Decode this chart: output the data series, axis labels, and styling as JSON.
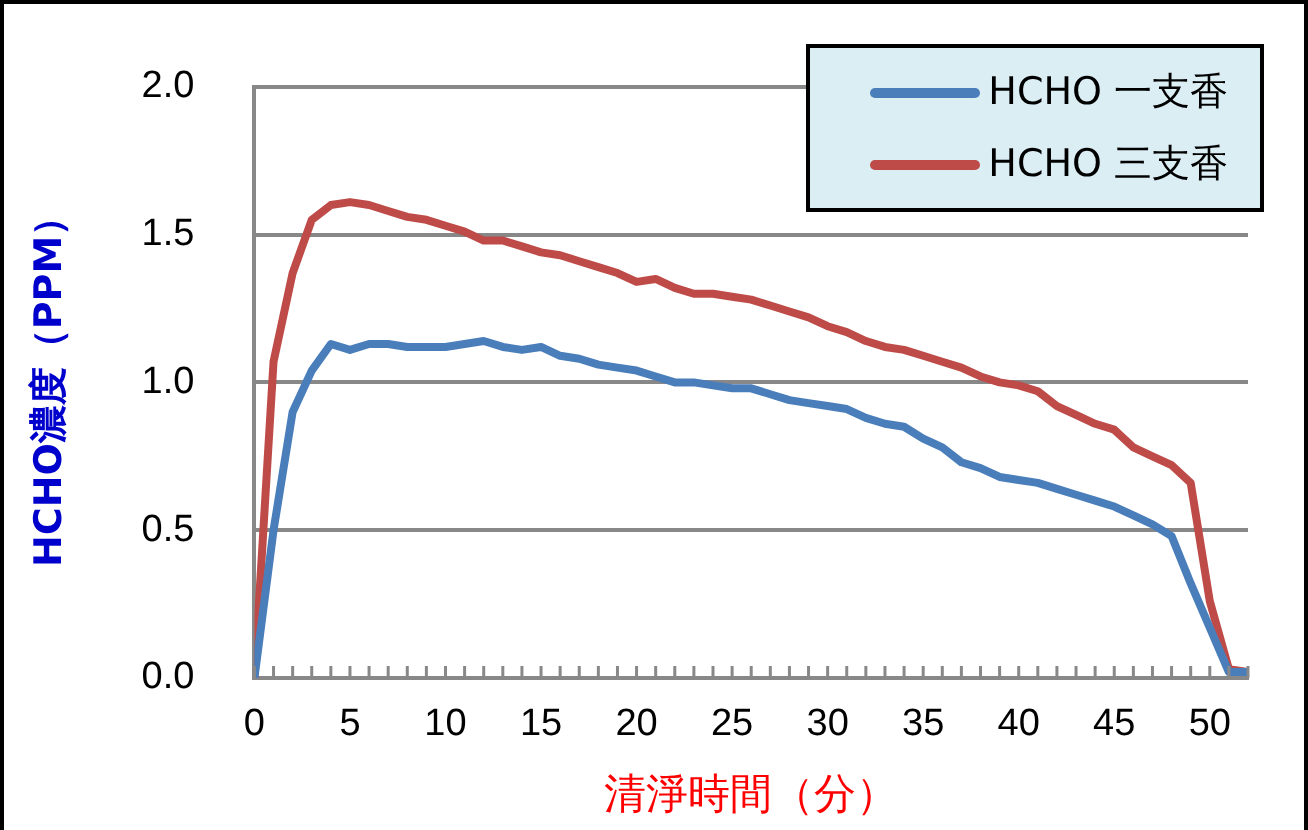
{
  "chart_data": {
    "type": "line",
    "xlabel": "清淨時間（分）",
    "ylabel": "HCHO濃度（PPM）",
    "x": [
      0,
      1,
      2,
      3,
      4,
      5,
      6,
      7,
      8,
      9,
      10,
      11,
      12,
      13,
      14,
      15,
      16,
      17,
      18,
      19,
      20,
      21,
      22,
      23,
      24,
      25,
      26,
      27,
      28,
      29,
      30,
      31,
      32,
      33,
      34,
      35,
      36,
      37,
      38,
      39,
      40,
      41,
      42,
      43,
      44,
      45,
      46,
      47,
      48,
      49,
      50,
      51,
      52
    ],
    "series": [
      {
        "name": "HCHO 一支香",
        "color": "#4a7ebb",
        "values": [
          0,
          0.5,
          0.9,
          1.04,
          1.13,
          1.11,
          1.13,
          1.13,
          1.12,
          1.12,
          1.12,
          1.13,
          1.14,
          1.12,
          1.11,
          1.12,
          1.09,
          1.08,
          1.06,
          1.05,
          1.04,
          1.02,
          1.0,
          1.0,
          0.99,
          0.98,
          0.98,
          0.96,
          0.94,
          0.93,
          0.92,
          0.91,
          0.88,
          0.86,
          0.85,
          0.81,
          0.78,
          0.73,
          0.71,
          0.68,
          0.67,
          0.66,
          0.64,
          0.62,
          0.6,
          0.58,
          0.55,
          0.52,
          0.48,
          0.32,
          0.17,
          0.02,
          0.02
        ]
      },
      {
        "name": "HCHO 三支香",
        "color": "#be4b48",
        "values": [
          0,
          1.07,
          1.37,
          1.55,
          1.6,
          1.61,
          1.6,
          1.58,
          1.56,
          1.55,
          1.53,
          1.51,
          1.48,
          1.48,
          1.46,
          1.44,
          1.43,
          1.41,
          1.39,
          1.37,
          1.34,
          1.35,
          1.32,
          1.3,
          1.3,
          1.29,
          1.28,
          1.26,
          1.24,
          1.22,
          1.19,
          1.17,
          1.14,
          1.12,
          1.11,
          1.09,
          1.07,
          1.05,
          1.02,
          1.0,
          0.99,
          0.97,
          0.92,
          0.89,
          0.86,
          0.84,
          0.78,
          0.75,
          0.72,
          0.66,
          0.26,
          0.03,
          0.02
        ]
      }
    ],
    "xlim": [
      0,
      52
    ],
    "xticks": [
      0,
      5,
      10,
      15,
      20,
      25,
      30,
      35,
      40,
      45,
      50
    ],
    "ylim": [
      0,
      2
    ],
    "yticks": [
      {
        "value": 0,
        "label": "0.0"
      },
      {
        "value": 0.5,
        "label": "0.5"
      },
      {
        "value": 1,
        "label": "1.0"
      },
      {
        "value": 1.5,
        "label": "1.5"
      },
      {
        "value": 2,
        "label": "2.0"
      }
    ],
    "grid": "y",
    "legend": "top right",
    "marker": "none",
    "line_style": "solid"
  }
}
